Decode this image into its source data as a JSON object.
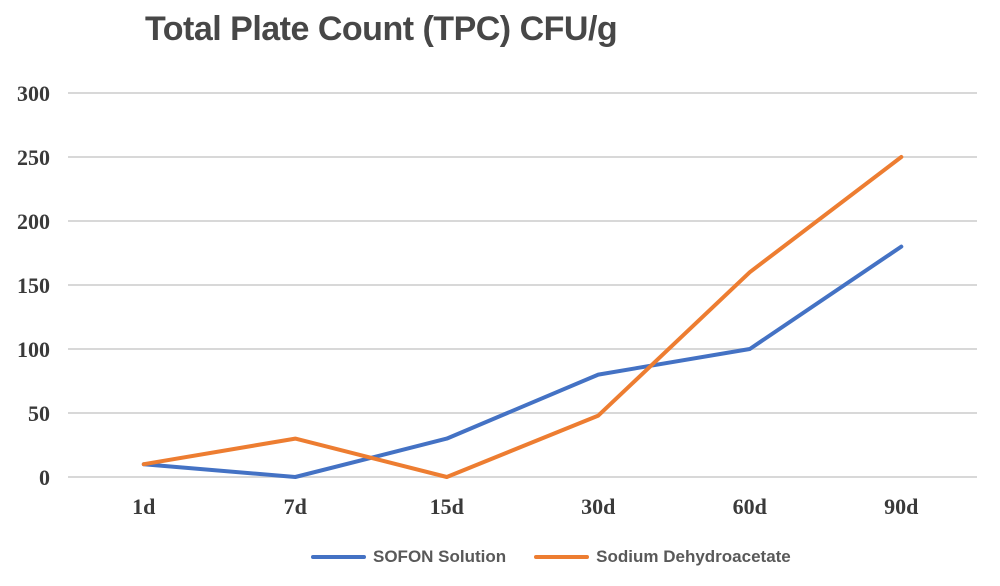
{
  "title": "Total Plate Count (TPC) CFU/g",
  "colors": {
    "background": "#ffffff",
    "title_text": "#474747",
    "axis_text": "#3a3a3a",
    "legend_text": "#595959",
    "gridline": "#d8d8d8",
    "series_blue": "#4472C4",
    "series_orange": "#ED7D31"
  },
  "chart_data": {
    "type": "line",
    "title": "Total Plate Count (TPC) CFU/g",
    "categories": [
      "1d",
      "7d",
      "15d",
      "30d",
      "60d",
      "90d"
    ],
    "series": [
      {
        "name": "SOFON Solution",
        "color": "#4472C4",
        "values": [
          10,
          0,
          30,
          80,
          100,
          180
        ]
      },
      {
        "name": "Sodium Dehydroacetate",
        "color": "#ED7D31",
        "values": [
          10,
          30,
          0,
          48,
          160,
          250
        ]
      }
    ],
    "xlabel": "",
    "ylabel": "",
    "ylim": [
      0,
      300
    ],
    "ytick_step": 50,
    "yticks": [
      300,
      250,
      200,
      150,
      100,
      50,
      0
    ],
    "grid": "horizontal",
    "gridline_color": "#d8d8d8",
    "legend_position": "bottom-center"
  }
}
